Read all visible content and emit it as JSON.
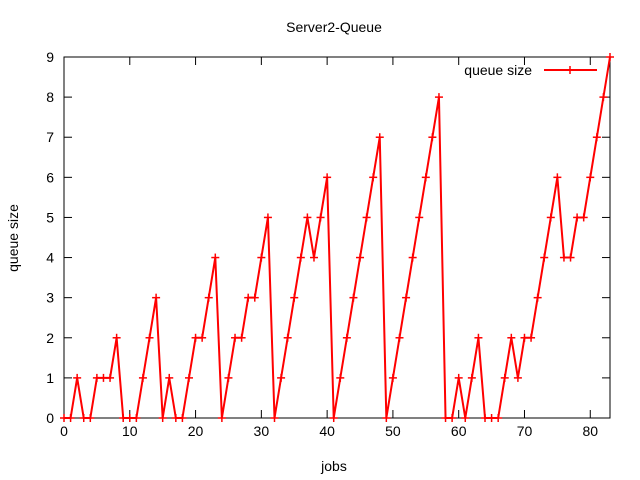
{
  "chart_data": {
    "type": "line",
    "title": "Server2-Queue",
    "xlabel": "jobs",
    "ylabel": "queue size",
    "xlim": [
      0,
      83
    ],
    "ylim": [
      0,
      9
    ],
    "xticks": [
      0,
      10,
      20,
      30,
      40,
      50,
      60,
      70,
      80
    ],
    "yticks": [
      0,
      1,
      2,
      3,
      4,
      5,
      6,
      7,
      8,
      9
    ],
    "grid": false,
    "legend": "top-right",
    "series": [
      {
        "name": "queue size",
        "color": "#ff0000",
        "marker": "plus",
        "x": [
          0,
          1,
          2,
          3,
          4,
          5,
          6,
          7,
          8,
          9,
          10,
          11,
          12,
          13,
          14,
          15,
          16,
          17,
          18,
          19,
          20,
          21,
          22,
          23,
          24,
          25,
          26,
          27,
          28,
          29,
          30,
          31,
          32,
          33,
          34,
          35,
          36,
          37,
          38,
          39,
          40,
          41,
          42,
          43,
          44,
          45,
          46,
          47,
          48,
          49,
          50,
          51,
          52,
          53,
          54,
          55,
          56,
          57,
          58,
          59,
          60,
          61,
          62,
          63,
          64,
          65,
          66,
          67,
          68,
          69,
          70,
          71,
          72,
          73,
          74,
          75,
          76,
          77,
          78,
          79,
          80,
          81,
          82,
          83
        ],
        "y": [
          0,
          0,
          1,
          0,
          0,
          1,
          1,
          1,
          2,
          0,
          0,
          0,
          1,
          2,
          3,
          0,
          1,
          0,
          0,
          1,
          2,
          2,
          3,
          4,
          0,
          1,
          2,
          2,
          3,
          3,
          4,
          5,
          0,
          1,
          2,
          3,
          4,
          5,
          4,
          5,
          6,
          0,
          1,
          2,
          3,
          4,
          5,
          6,
          7,
          0,
          1,
          2,
          3,
          4,
          5,
          6,
          7,
          8,
          0,
          0,
          1,
          0,
          1,
          2,
          0,
          0,
          0,
          1,
          2,
          1,
          2,
          2,
          3,
          4,
          5,
          6,
          4,
          4,
          5,
          5,
          6,
          7,
          8,
          9
        ]
      }
    ]
  }
}
